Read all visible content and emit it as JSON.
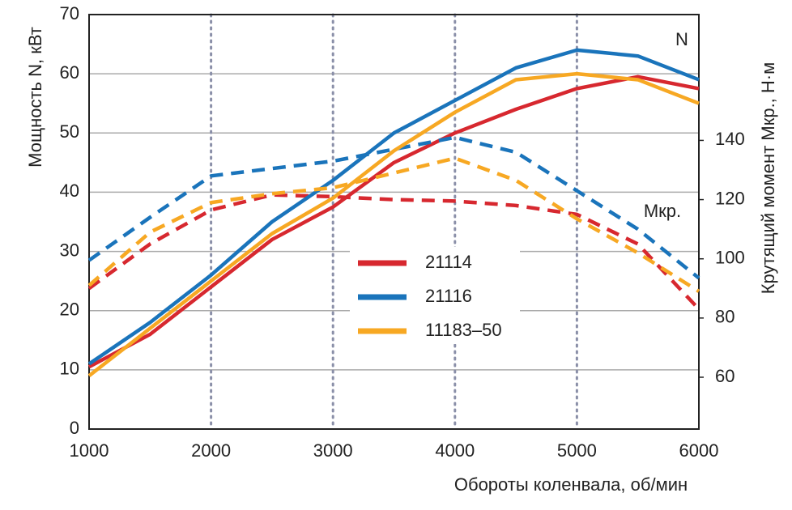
{
  "chart_data": {
    "type": "line",
    "y_label": "Мощность N, кВт",
    "y2_label": "Крутящий момент Mкр., Н·м",
    "x_label": "Обороты коленвала, об/мин",
    "annotations": [
      "N",
      "Mкр."
    ],
    "x": [
      1000,
      1500,
      2000,
      2500,
      3000,
      3500,
      4000,
      4500,
      5000,
      5500,
      6000
    ],
    "xlim": [
      1000,
      6000
    ],
    "xticks": [
      1000,
      2000,
      3000,
      4000,
      5000,
      6000
    ],
    "ylim": [
      0,
      70
    ],
    "yticks": [
      0,
      10,
      20,
      30,
      40,
      50,
      60,
      70
    ],
    "y2lim": [
      42.5,
      182.5
    ],
    "y2ticks": [
      60,
      80,
      100,
      120,
      140
    ],
    "grid": true,
    "legend": "center",
    "series": [
      {
        "name": "21114",
        "color": "#d7282f",
        "values": [
          10.5,
          16,
          24,
          32,
          37.5,
          45,
          50,
          54,
          57.5,
          59.5,
          57.5
        ],
        "y2_values": [
          90,
          105,
          116.5,
          121.6,
          121,
          120,
          119.5,
          118,
          115,
          105,
          83
        ]
      },
      {
        "name": "21116",
        "color": "#1a74bb",
        "values": [
          11,
          18,
          26,
          35,
          42,
          50,
          55.5,
          61,
          64,
          63,
          59
        ],
        "y2_values": [
          99.5,
          114,
          128,
          130.5,
          133,
          137,
          141,
          136,
          123,
          110,
          93.5
        ]
      },
      {
        "name": "11183–50",
        "color": "#f7a823",
        "values": [
          9,
          17,
          25,
          33,
          39,
          47,
          53.5,
          59,
          60,
          59,
          55
        ],
        "y2_values": [
          91,
          109,
          119,
          122,
          124,
          129,
          134,
          126.5,
          113.5,
          102,
          89
        ]
      }
    ]
  }
}
